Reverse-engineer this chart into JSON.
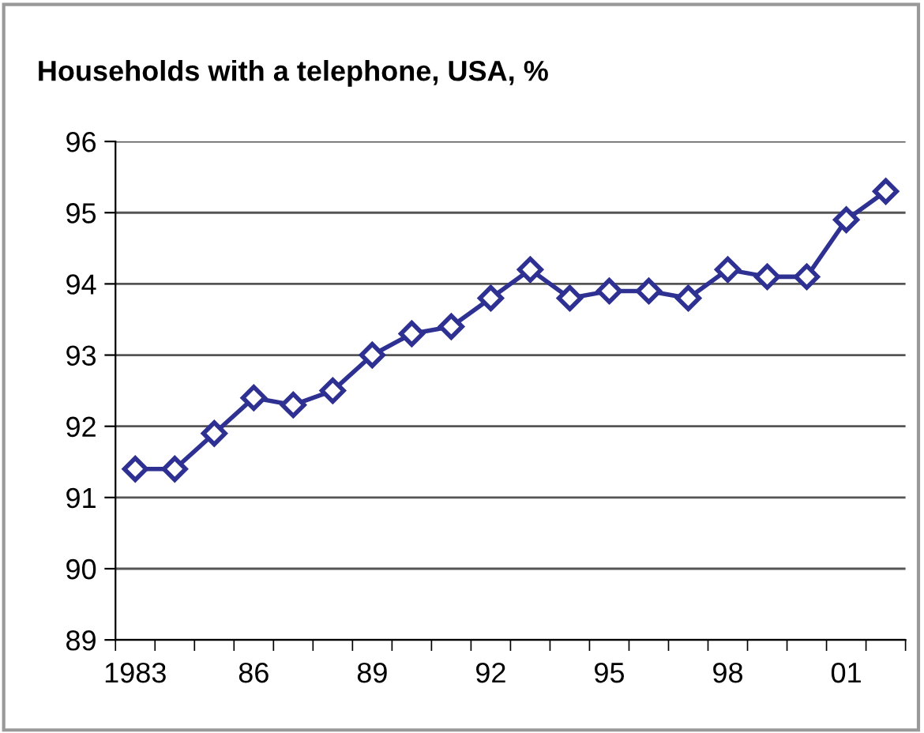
{
  "chart_data": {
    "type": "line",
    "title": "Households with a telephone, USA, %",
    "categories": [
      "1983",
      null,
      null,
      "86",
      null,
      null,
      "89",
      null,
      null,
      "92",
      null,
      null,
      "95",
      null,
      null,
      "98",
      null,
      null,
      "01",
      null
    ],
    "series": [
      {
        "color": "#2e3192",
        "values": [
          91.4,
          91.4,
          91.9,
          92.4,
          92.3,
          92.5,
          93.0,
          93.3,
          93.4,
          93.8,
          94.2,
          93.8,
          93.9,
          93.9,
          93.8,
          94.2,
          94.1,
          94.1,
          94.9,
          95.3
        ]
      }
    ],
    "ylim": [
      89,
      96
    ],
    "yticks": [
      89,
      90,
      91,
      92,
      93,
      94,
      95,
      96
    ],
    "grid": "y",
    "marker": "diamond",
    "line_style": "solid",
    "legend": false
  }
}
